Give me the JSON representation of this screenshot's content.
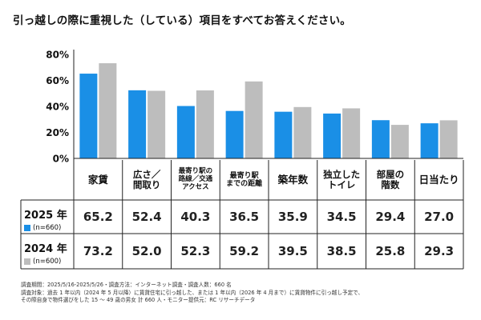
{
  "title": "引っ越しの際に重視した（している）項目をすべてお答えください。",
  "chart_data": {
    "type": "bar",
    "categories": [
      "家賃",
      "広さ／\n間取り",
      "最寄り駅の\n路線／交通\nアクセス",
      "最寄り駅\nまでの距離",
      "築年数",
      "独立した\nトイレ",
      "部屋の\n階数",
      "日当たり"
    ],
    "series": [
      {
        "name": "2025 年",
        "n_label": "(n=660)",
        "color": "#1a8fe6",
        "values": [
          65.2,
          52.4,
          40.3,
          36.5,
          35.9,
          34.5,
          29.4,
          27.0
        ],
        "display": [
          "65.2",
          "52.4",
          "40.3",
          "36.5",
          "35.9",
          "34.5",
          "29.4",
          "27.0"
        ]
      },
      {
        "name": "2024 年",
        "n_label": "(n=600)",
        "color": "#bdbdbd",
        "values": [
          73.2,
          52.0,
          52.3,
          59.2,
          39.5,
          38.5,
          25.8,
          29.3
        ],
        "display": [
          "73.2",
          "52.0",
          "52.3",
          "59.2",
          "39.5",
          "38.5",
          "25.8",
          "29.3"
        ]
      }
    ],
    "yticks": [
      "0%",
      "20%",
      "40%",
      "60%",
      "80%"
    ],
    "ylim": [
      0,
      80
    ],
    "grid": false
  },
  "notes": [
    "調査期間：2025/5/16-2025/5/26・調査方法：インターネット調査・調査人数：660 名",
    "調査対象：過去 1 年以内（2024 年 5 月以降）に賃貸住宅に引っ越した、または 1 年以内（2026 年 4 月まで）に賃貸物件に引っ越し予定で、",
    "その際自身で物件選びをした 15 ～ 49 歳の男女 計 660 人・モニター提供元：RC リサーチデータ"
  ]
}
